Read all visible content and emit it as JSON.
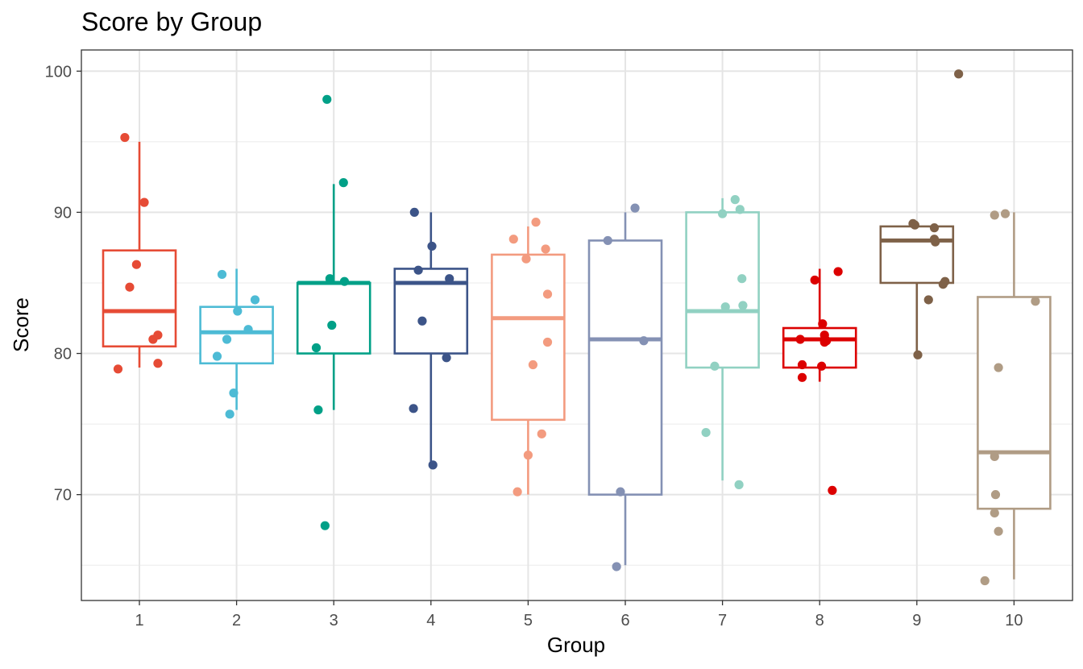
{
  "chart_data": {
    "type": "boxplot",
    "title": "Score by Group",
    "xlabel": "Group",
    "ylabel": "Score",
    "categories": [
      "1",
      "2",
      "3",
      "4",
      "5",
      "6",
      "7",
      "8",
      "9",
      "10"
    ],
    "yticks": [
      70,
      80,
      90,
      100
    ],
    "ylim": [
      62.5,
      101.5
    ],
    "grid": true,
    "boxes": [
      {
        "group": "1",
        "color": "#E64B35",
        "whisker_low": 79,
        "q1": 80.5,
        "median": 83,
        "q3": 87.3,
        "whisker_high": 95,
        "points": [
          {
            "dx": -0.22,
            "y": 78.9
          },
          {
            "dx": -0.1,
            "y": 84.7
          },
          {
            "dx": -0.03,
            "y": 86.3
          },
          {
            "dx": 0.05,
            "y": 90.7
          },
          {
            "dx": 0.14,
            "y": 81
          },
          {
            "dx": 0.19,
            "y": 81.3
          },
          {
            "dx": 0.19,
            "y": 79.3
          },
          {
            "dx": -0.15,
            "y": 95.3
          }
        ]
      },
      {
        "group": "2",
        "color": "#4DBBD5",
        "whisker_low": 76,
        "q1": 79.3,
        "median": 81.5,
        "q3": 83.3,
        "whisker_high": 86,
        "points": [
          {
            "dx": -0.15,
            "y": 85.6
          },
          {
            "dx": -0.1,
            "y": 81
          },
          {
            "dx": 0.01,
            "y": 83
          },
          {
            "dx": 0.12,
            "y": 81.7
          },
          {
            "dx": 0.19,
            "y": 83.8
          },
          {
            "dx": -0.2,
            "y": 79.8
          },
          {
            "dx": -0.03,
            "y": 77.2
          },
          {
            "dx": -0.07,
            "y": 75.7
          }
        ]
      },
      {
        "group": "3",
        "color": "#00A087",
        "whisker_low": 76,
        "q1": 80,
        "median": 85,
        "q3": 85,
        "whisker_high": 92,
        "points": [
          {
            "dx": -0.07,
            "y": 98
          },
          {
            "dx": 0.1,
            "y": 92.1
          },
          {
            "dx": -0.04,
            "y": 85.3
          },
          {
            "dx": 0.11,
            "y": 85.1
          },
          {
            "dx": -0.02,
            "y": 82
          },
          {
            "dx": -0.18,
            "y": 80.4
          },
          {
            "dx": -0.16,
            "y": 76
          },
          {
            "dx": -0.09,
            "y": 67.8
          }
        ]
      },
      {
        "group": "4",
        "color": "#3C5488",
        "whisker_low": 72,
        "q1": 80,
        "median": 85,
        "q3": 86,
        "whisker_high": 90,
        "points": [
          {
            "dx": -0.17,
            "y": 90
          },
          {
            "dx": 0.01,
            "y": 87.6
          },
          {
            "dx": -0.13,
            "y": 85.9
          },
          {
            "dx": 0.19,
            "y": 85.3
          },
          {
            "dx": -0.09,
            "y": 82.3
          },
          {
            "dx": 0.16,
            "y": 79.7
          },
          {
            "dx": -0.18,
            "y": 76.1
          },
          {
            "dx": 0.02,
            "y": 72.1
          }
        ]
      },
      {
        "group": "5",
        "color": "#F39B7F",
        "whisker_low": 70,
        "q1": 75.3,
        "median": 82.5,
        "q3": 87,
        "whisker_high": 89,
        "points": [
          {
            "dx": 0.08,
            "y": 89.3
          },
          {
            "dx": -0.15,
            "y": 88.1
          },
          {
            "dx": 0.18,
            "y": 87.4
          },
          {
            "dx": -0.02,
            "y": 86.7
          },
          {
            "dx": 0.2,
            "y": 84.2
          },
          {
            "dx": 0.2,
            "y": 80.8
          },
          {
            "dx": 0.05,
            "y": 79.2
          },
          {
            "dx": 0.14,
            "y": 74.3
          },
          {
            "dx": 0,
            "y": 72.8
          },
          {
            "dx": -0.11,
            "y": 70.2
          }
        ]
      },
      {
        "group": "6",
        "color": "#8491B4",
        "whisker_low": 65,
        "q1": 70,
        "median": 81,
        "q3": 88,
        "whisker_high": 90,
        "points": [
          {
            "dx": 0.1,
            "y": 90.3
          },
          {
            "dx": -0.18,
            "y": 88
          },
          {
            "dx": 0.19,
            "y": 80.9
          },
          {
            "dx": -0.05,
            "y": 70.2
          },
          {
            "dx": -0.09,
            "y": 64.9
          }
        ]
      },
      {
        "group": "7",
        "color": "#91D1C2",
        "whisker_low": 71,
        "q1": 79,
        "median": 83,
        "q3": 90,
        "whisker_high": 91,
        "points": [
          {
            "dx": 0.13,
            "y": 90.9
          },
          {
            "dx": 0.18,
            "y": 90.2
          },
          {
            "dx": 0,
            "y": 89.9
          },
          {
            "dx": 0.2,
            "y": 85.3
          },
          {
            "dx": 0.21,
            "y": 83.4
          },
          {
            "dx": 0.03,
            "y": 83.3
          },
          {
            "dx": -0.08,
            "y": 79.1
          },
          {
            "dx": -0.17,
            "y": 74.4
          },
          {
            "dx": 0.17,
            "y": 70.7
          }
        ]
      },
      {
        "group": "8",
        "color": "#DC0000",
        "whisker_low": 78,
        "q1": 79,
        "median": 81,
        "q3": 81.8,
        "whisker_high": 86,
        "points": [
          {
            "dx": 0.19,
            "y": 85.8
          },
          {
            "dx": -0.05,
            "y": 85.2
          },
          {
            "dx": 0.03,
            "y": 82.1
          },
          {
            "dx": 0.05,
            "y": 81.3
          },
          {
            "dx": -0.2,
            "y": 81
          },
          {
            "dx": 0.05,
            "y": 80.8
          },
          {
            "dx": 0.07,
            "y": 80.9
          },
          {
            "dx": -0.18,
            "y": 79.2
          },
          {
            "dx": 0.02,
            "y": 79.1
          },
          {
            "dx": -0.18,
            "y": 78.3
          },
          {
            "dx": 0.13,
            "y": 70.3
          }
        ]
      },
      {
        "group": "9",
        "color": "#7E6148",
        "whisker_low": 80,
        "q1": 85,
        "median": 88,
        "q3": 89,
        "whisker_high": 89,
        "points": [
          {
            "dx": -0.04,
            "y": 89.2
          },
          {
            "dx": -0.02,
            "y": 89.1
          },
          {
            "dx": 0.18,
            "y": 88.9
          },
          {
            "dx": 0.18,
            "y": 88.1
          },
          {
            "dx": 0.19,
            "y": 87.9
          },
          {
            "dx": 0.29,
            "y": 85.1
          },
          {
            "dx": 0.27,
            "y": 84.9
          },
          {
            "dx": 0.12,
            "y": 83.8
          },
          {
            "dx": 0.01,
            "y": 79.9
          },
          {
            "dx": 0.43,
            "y": 99.8
          }
        ]
      },
      {
        "group": "10",
        "color": "#B09C85",
        "whisker_low": 64,
        "q1": 69,
        "median": 73,
        "q3": 84,
        "whisker_high": 90,
        "points": [
          {
            "dx": -0.2,
            "y": 89.8
          },
          {
            "dx": -0.09,
            "y": 89.9
          },
          {
            "dx": 0.22,
            "y": 83.7
          },
          {
            "dx": -0.16,
            "y": 79
          },
          {
            "dx": -0.2,
            "y": 72.7
          },
          {
            "dx": -0.19,
            "y": 70
          },
          {
            "dx": -0.2,
            "y": 68.7
          },
          {
            "dx": -0.16,
            "y": 67.4
          },
          {
            "dx": -0.3,
            "y": 63.9
          }
        ]
      }
    ]
  }
}
